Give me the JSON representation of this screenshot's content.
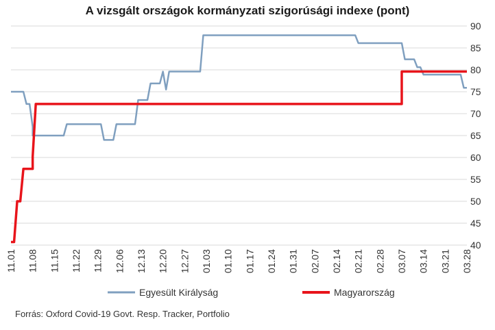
{
  "chart_data": {
    "type": "line",
    "title": "A vizsgált országok kormányzati szigorúsági indexe (pont)",
    "xlabel": "",
    "ylabel": "",
    "ylim": [
      40,
      90
    ],
    "yticks": [
      40,
      45,
      50,
      55,
      60,
      65,
      70,
      75,
      80,
      85,
      90
    ],
    "x_range": [
      "11.01",
      "03.28"
    ],
    "x_ticks": [
      "11.01",
      "11.08",
      "11.15",
      "11.22",
      "11.29",
      "12.06",
      "12.13",
      "12.20",
      "12.27",
      "01.03",
      "01.10",
      "01.17",
      "01.24",
      "01.31",
      "02.07",
      "02.14",
      "02.21",
      "02.28",
      "03.07",
      "03.14",
      "03.21",
      "03.28"
    ],
    "grid": "horizontal",
    "legend_position": "bottom",
    "series": [
      {
        "name": "Egyesült Királyság",
        "color": "#7f9fbf",
        "points": [
          [
            "11.01",
            75.0
          ],
          [
            "11.05",
            75.0
          ],
          [
            "11.06",
            72.2
          ],
          [
            "11.07",
            72.2
          ],
          [
            "11.08",
            67.0
          ],
          [
            "11.08",
            65.0
          ],
          [
            "11.18",
            65.0
          ],
          [
            "11.19",
            67.6
          ],
          [
            "11.30",
            67.6
          ],
          [
            "12.01",
            64.0
          ],
          [
            "12.04",
            64.0
          ],
          [
            "12.05",
            67.6
          ],
          [
            "12.11",
            67.6
          ],
          [
            "12.12",
            73.1
          ],
          [
            "12.15",
            73.1
          ],
          [
            "12.16",
            76.9
          ],
          [
            "12.19",
            76.9
          ],
          [
            "12.20",
            79.6
          ],
          [
            "12.21",
            75.5
          ],
          [
            "12.22",
            79.6
          ],
          [
            "01.01",
            79.6
          ],
          [
            "01.02",
            87.9
          ],
          [
            "02.20",
            87.9
          ],
          [
            "02.21",
            86.1
          ],
          [
            "03.07",
            86.1
          ],
          [
            "03.08",
            82.4
          ],
          [
            "03.11",
            82.4
          ],
          [
            "03.12",
            80.6
          ],
          [
            "03.13",
            80.6
          ],
          [
            "03.14",
            78.9
          ],
          [
            "03.26",
            78.9
          ],
          [
            "03.27",
            75.9
          ],
          [
            "03.28",
            75.9
          ]
        ]
      },
      {
        "name": "Magyarország",
        "color": "#e8141b",
        "points": [
          [
            "11.01",
            40.7
          ],
          [
            "11.02",
            40.7
          ],
          [
            "11.03",
            50.0
          ],
          [
            "11.04",
            50.0
          ],
          [
            "11.05",
            57.4
          ],
          [
            "11.08",
            57.4
          ],
          [
            "11.08",
            60.2
          ],
          [
            "11.09",
            72.2
          ],
          [
            "03.07",
            72.2
          ],
          [
            "03.07",
            79.6
          ],
          [
            "03.28",
            79.6
          ]
        ]
      }
    ]
  },
  "legend": [
    {
      "label": "Egyesült Királyság",
      "color": "#7f9fbf"
    },
    {
      "label": "Magyarország",
      "color": "#e8141b"
    }
  ],
  "source": "Forrás: Oxford Covid-19 Govt. Resp. Tracker, Portfolio"
}
